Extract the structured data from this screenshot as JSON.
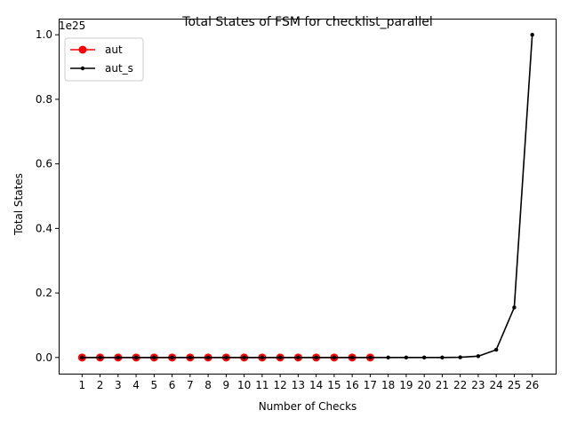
{
  "chart_data": {
    "type": "line",
    "title": "Total States of FSM for checklist_parallel",
    "xlabel": "Number of Checks",
    "ylabel": "Total States",
    "offset_label": "1e25",
    "x": [
      1,
      2,
      3,
      4,
      5,
      6,
      7,
      8,
      9,
      10,
      11,
      12,
      13,
      14,
      15,
      16,
      17,
      18,
      19,
      20,
      21,
      22,
      23,
      24,
      25,
      26
    ],
    "x_tick_labels": [
      "1",
      "2",
      "3",
      "4",
      "5",
      "6",
      "7",
      "8",
      "9",
      "10",
      "11",
      "12",
      "13",
      "14",
      "15",
      "16",
      "17",
      "18",
      "19",
      "20",
      "21",
      "22",
      "23",
      "24",
      "25",
      "26"
    ],
    "y_ticks": [
      0.0,
      0.2,
      0.4,
      0.6,
      0.8,
      1.0
    ],
    "y_tick_labels": [
      "0.0",
      "0.2",
      "0.4",
      "0.6",
      "0.8",
      "1.0"
    ],
    "xlim": [
      -0.3,
      27.3
    ],
    "ylim": [
      -0.05,
      1.05
    ],
    "y_scale_note": "values in units of 1e25",
    "grid": false,
    "legend_position": "top-left",
    "series": [
      {
        "name": "aut",
        "color": "#ff0000",
        "marker": "circle-large",
        "x": [
          1,
          2,
          3,
          4,
          5,
          6,
          7,
          8,
          9,
          10,
          11,
          12,
          13,
          14,
          15,
          16,
          17
        ],
        "values": [
          0,
          0,
          0,
          0,
          0,
          0,
          0,
          0,
          0,
          0,
          0,
          0,
          0,
          0,
          0,
          0,
          0
        ]
      },
      {
        "name": "aut_s",
        "color": "#000000",
        "marker": "point-small",
        "x": [
          1,
          2,
          3,
          4,
          5,
          6,
          7,
          8,
          9,
          10,
          11,
          12,
          13,
          14,
          15,
          16,
          17,
          18,
          19,
          20,
          21,
          22,
          23,
          24,
          25,
          26
        ],
        "values": [
          0,
          0,
          0,
          0,
          0,
          0,
          0,
          0,
          0,
          0,
          0,
          0,
          0,
          0,
          0,
          0,
          0,
          0,
          0,
          0,
          0.0001,
          0.0006,
          0.004,
          0.024,
          0.155,
          1.0
        ]
      }
    ]
  }
}
